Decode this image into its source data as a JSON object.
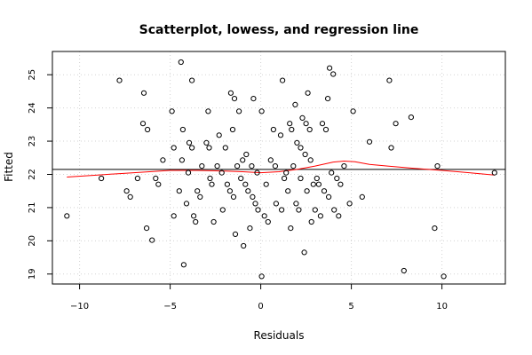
{
  "chart_data": {
    "type": "scatter",
    "title": "Scatterplot, lowess, and regression line",
    "xlabel": "Residuals",
    "ylabel": "Fitted",
    "xlim": [
      -11.5,
      13.5
    ],
    "ylim": [
      18.7,
      25.7
    ],
    "x_ticks": [
      -10,
      -5,
      0,
      5,
      10
    ],
    "y_ticks": [
      19,
      20,
      21,
      22,
      23,
      24,
      25
    ],
    "x_tick_labels": [
      "−10",
      "−5",
      "0",
      "5",
      "10"
    ],
    "y_tick_labels": [
      "19",
      "20",
      "21",
      "22",
      "23",
      "24",
      "25"
    ],
    "grid": "dotted",
    "colors": {
      "points": "#000000",
      "lowess": "#ff0000",
      "regression": "#000000"
    },
    "points": [
      [
        -10.7,
        20.75
      ],
      [
        -8.8,
        21.88
      ],
      [
        -7.8,
        24.83
      ],
      [
        -7.4,
        21.5
      ],
      [
        -7.2,
        21.32
      ],
      [
        -6.8,
        21.88
      ],
      [
        -6.5,
        23.53
      ],
      [
        -6.45,
        24.45
      ],
      [
        -6.3,
        20.38
      ],
      [
        -6.25,
        23.35
      ],
      [
        -6.0,
        20.02
      ],
      [
        -5.8,
        21.88
      ],
      [
        -5.65,
        21.7
      ],
      [
        -5.4,
        22.43
      ],
      [
        -4.9,
        23.9
      ],
      [
        -4.8,
        22.8
      ],
      [
        -4.8,
        20.75
      ],
      [
        -4.5,
        21.5
      ],
      [
        -4.4,
        25.38
      ],
      [
        -4.35,
        22.43
      ],
      [
        -4.3,
        23.35
      ],
      [
        -4.25,
        19.28
      ],
      [
        -4.1,
        21.12
      ],
      [
        -4.0,
        22.05
      ],
      [
        -3.95,
        22.95
      ],
      [
        -3.8,
        24.83
      ],
      [
        -3.8,
        22.8
      ],
      [
        -3.7,
        20.75
      ],
      [
        -3.6,
        20.57
      ],
      [
        -3.5,
        21.5
      ],
      [
        -3.35,
        21.32
      ],
      [
        -3.25,
        22.25
      ],
      [
        -3.0,
        22.95
      ],
      [
        -2.9,
        23.9
      ],
      [
        -2.85,
        22.8
      ],
      [
        -2.8,
        21.88
      ],
      [
        -2.7,
        21.7
      ],
      [
        -2.6,
        20.57
      ],
      [
        -2.4,
        22.25
      ],
      [
        -2.3,
        23.18
      ],
      [
        -2.15,
        22.05
      ],
      [
        -2.1,
        20.93
      ],
      [
        -1.95,
        22.8
      ],
      [
        -1.85,
        21.7
      ],
      [
        -1.7,
        21.5
      ],
      [
        -1.65,
        24.45
      ],
      [
        -1.55,
        23.35
      ],
      [
        -1.5,
        21.32
      ],
      [
        -1.45,
        24.28
      ],
      [
        -1.4,
        20.2
      ],
      [
        -1.3,
        22.25
      ],
      [
        -1.2,
        23.9
      ],
      [
        -1.1,
        21.88
      ],
      [
        -1.0,
        22.43
      ],
      [
        -0.95,
        19.85
      ],
      [
        -0.85,
        21.7
      ],
      [
        -0.8,
        22.6
      ],
      [
        -0.7,
        21.5
      ],
      [
        -0.6,
        20.38
      ],
      [
        -0.5,
        22.25
      ],
      [
        -0.45,
        21.32
      ],
      [
        -0.4,
        24.28
      ],
      [
        -0.3,
        21.12
      ],
      [
        -0.2,
        22.05
      ],
      [
        -0.15,
        20.93
      ],
      [
        0.05,
        18.93
      ],
      [
        0.05,
        23.9
      ],
      [
        0.2,
        20.75
      ],
      [
        0.3,
        21.7
      ],
      [
        0.4,
        20.57
      ],
      [
        0.55,
        22.43
      ],
      [
        0.7,
        23.35
      ],
      [
        0.8,
        22.25
      ],
      [
        0.85,
        21.12
      ],
      [
        1.1,
        23.18
      ],
      [
        1.15,
        20.93
      ],
      [
        1.2,
        24.83
      ],
      [
        1.3,
        21.88
      ],
      [
        1.4,
        22.05
      ],
      [
        1.5,
        21.5
      ],
      [
        1.6,
        23.53
      ],
      [
        1.65,
        20.38
      ],
      [
        1.7,
        23.35
      ],
      [
        1.8,
        22.25
      ],
      [
        1.9,
        24.1
      ],
      [
        1.95,
        21.12
      ],
      [
        2.0,
        22.95
      ],
      [
        2.1,
        20.93
      ],
      [
        2.2,
        21.88
      ],
      [
        2.2,
        22.8
      ],
      [
        2.3,
        23.7
      ],
      [
        2.4,
        19.65
      ],
      [
        2.45,
        22.6
      ],
      [
        2.5,
        23.53
      ],
      [
        2.55,
        21.5
      ],
      [
        2.6,
        24.45
      ],
      [
        2.7,
        23.35
      ],
      [
        2.75,
        22.43
      ],
      [
        2.8,
        20.57
      ],
      [
        2.9,
        21.7
      ],
      [
        3.0,
        20.93
      ],
      [
        3.1,
        21.88
      ],
      [
        3.2,
        21.7
      ],
      [
        3.3,
        20.75
      ],
      [
        3.4,
        23.53
      ],
      [
        3.5,
        21.5
      ],
      [
        3.6,
        23.35
      ],
      [
        3.7,
        24.28
      ],
      [
        3.75,
        21.32
      ],
      [
        3.8,
        25.2
      ],
      [
        3.9,
        22.05
      ],
      [
        4.0,
        25.02
      ],
      [
        4.05,
        20.93
      ],
      [
        4.2,
        21.88
      ],
      [
        4.3,
        20.75
      ],
      [
        4.4,
        21.7
      ],
      [
        4.6,
        22.25
      ],
      [
        4.9,
        21.12
      ],
      [
        5.1,
        23.9
      ],
      [
        5.6,
        21.32
      ],
      [
        6.0,
        22.98
      ],
      [
        7.1,
        24.83
      ],
      [
        7.2,
        22.8
      ],
      [
        7.45,
        23.53
      ],
      [
        7.9,
        19.1
      ],
      [
        8.3,
        23.72
      ],
      [
        9.6,
        20.38
      ],
      [
        9.75,
        22.25
      ],
      [
        10.1,
        18.93
      ],
      [
        12.9,
        22.05
      ]
    ],
    "lowess": [
      [
        -10.7,
        21.92
      ],
      [
        -9.0,
        21.98
      ],
      [
        -7.0,
        22.05
      ],
      [
        -5.0,
        22.12
      ],
      [
        -3.5,
        22.12
      ],
      [
        -2.0,
        22.1
      ],
      [
        -1.0,
        22.08
      ],
      [
        0.0,
        22.05
      ],
      [
        1.0,
        22.08
      ],
      [
        2.0,
        22.15
      ],
      [
        3.0,
        22.25
      ],
      [
        4.0,
        22.37
      ],
      [
        4.6,
        22.4
      ],
      [
        5.2,
        22.38
      ],
      [
        6.0,
        22.3
      ],
      [
        7.0,
        22.25
      ],
      [
        8.5,
        22.18
      ],
      [
        10.0,
        22.12
      ],
      [
        11.5,
        22.05
      ],
      [
        12.9,
        21.98
      ]
    ],
    "regression": {
      "intercept": 22.15,
      "slope": 0
    }
  }
}
